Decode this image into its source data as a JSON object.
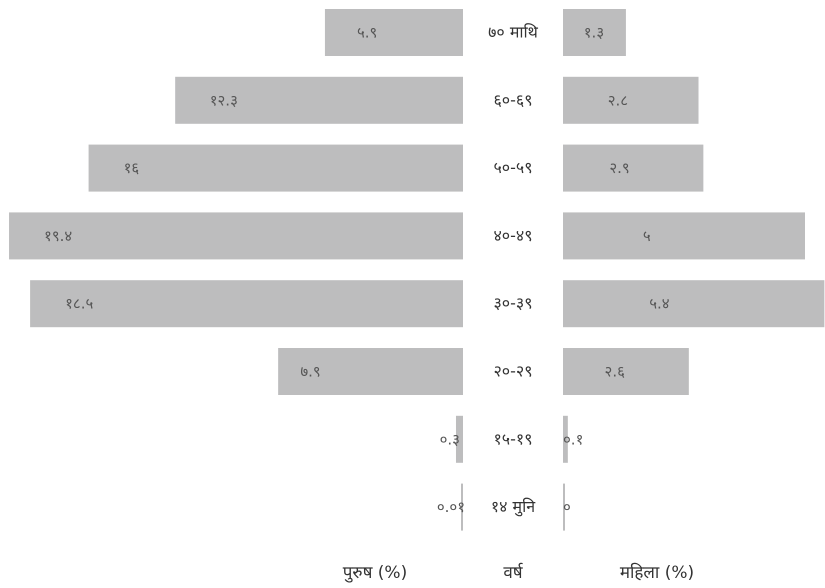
{
  "chart_data": {
    "type": "bar",
    "orientation": "horizontal",
    "layout": "population-pyramid",
    "categories": [
      "७० माथि",
      "६०-६९",
      "५०-५९",
      "४०-४९",
      "३०-३९",
      "२०-२९",
      "१५-१९",
      "१४ मुनि"
    ],
    "series": [
      {
        "name": "पुरुष (%)",
        "side": "left",
        "values": [
          5.9,
          12.3,
          16,
          19.4,
          18.5,
          7.9,
          0.3,
          0.01
        ],
        "value_labels": [
          "५.९",
          "१२.३",
          "१६",
          "१९.४",
          "१८.५",
          "७.९",
          "०.३",
          "०.०१"
        ]
      },
      {
        "name": "महिला (%)",
        "side": "right",
        "values": [
          1.3,
          2.8,
          2.9,
          5,
          5.4,
          2.6,
          0.1,
          0
        ],
        "value_labels": [
          "१.३",
          "२.८",
          "२.९",
          "५",
          "५.४",
          "२.६",
          "०.१",
          "०"
        ]
      }
    ],
    "xlabel_center": "वर्ष",
    "bar_color": "#bdbdbe",
    "grid": false
  }
}
